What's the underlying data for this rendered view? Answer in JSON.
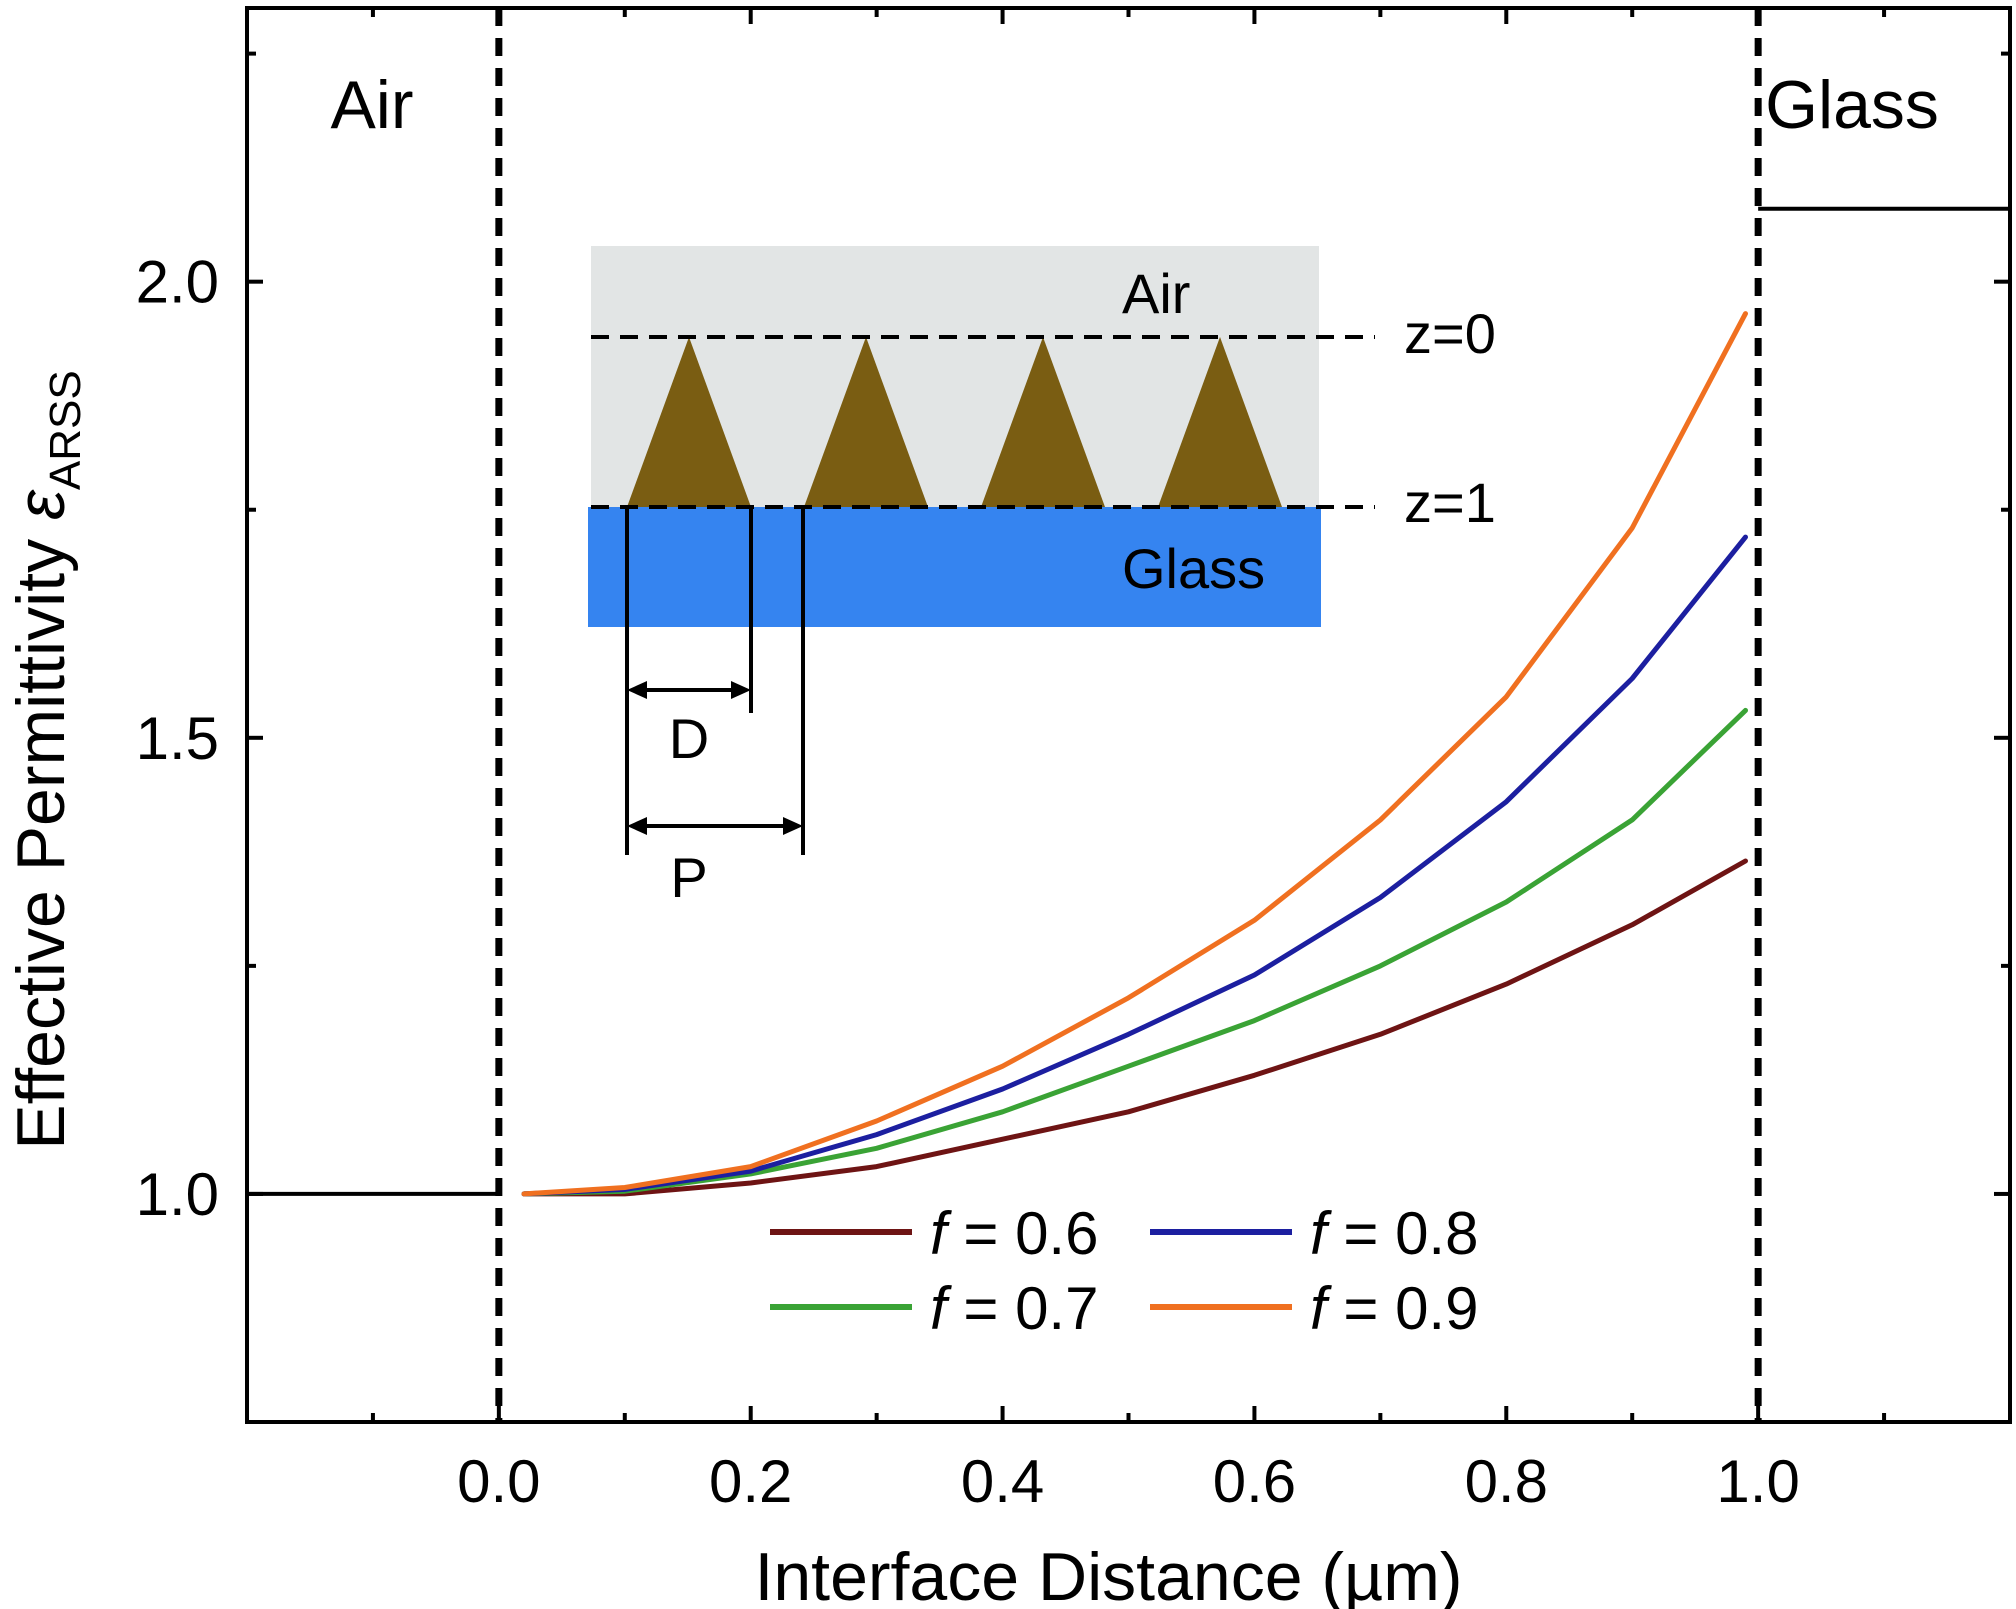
{
  "chart_data": {
    "type": "line",
    "xlabel": "Interface Distance (µm)",
    "ylabel_main": "Effective Permittivity ",
    "ylabel_symbol": "ε",
    "ylabel_subscript": "ARSS",
    "xlim": [
      -0.2,
      1.2
    ],
    "ylim": [
      0.75,
      2.3
    ],
    "x_ticks": [
      0.0,
      0.2,
      0.4,
      0.6,
      0.8,
      1.0
    ],
    "x_tick_labels": [
      "0.0",
      "0.2",
      "0.4",
      "0.6",
      "0.8",
      "1.0"
    ],
    "x_minor_ticks": [
      -0.1,
      0.1,
      0.3,
      0.5,
      0.7,
      0.9,
      1.1
    ],
    "y_ticks": [
      1.0,
      1.5,
      2.0
    ],
    "y_tick_labels": [
      "1.0",
      "1.5",
      "2.0"
    ],
    "y_minor_ticks": [
      0.75,
      1.25,
      1.75,
      2.25
    ],
    "grid": false,
    "legend_position": "bottom-center",
    "region_labels": {
      "left": "Air",
      "right": "Glass"
    },
    "reference_lines": {
      "boundaries_x": [
        0.0,
        1.0
      ],
      "air_level": {
        "x": [
          -0.2,
          0.0
        ],
        "y": 1.0
      },
      "glass_level": {
        "x": [
          1.0,
          1.2
        ],
        "y": 2.08
      }
    },
    "series": [
      {
        "name": "f = 0.6",
        "f_value": "0.6",
        "color": "#6e1414",
        "x": [
          0.02,
          0.1,
          0.2,
          0.3,
          0.4,
          0.5,
          0.6,
          0.7,
          0.8,
          0.9,
          0.99
        ],
        "y": [
          1.0,
          1.0,
          1.012,
          1.03,
          1.06,
          1.09,
          1.13,
          1.175,
          1.23,
          1.295,
          1.365
        ]
      },
      {
        "name": "f = 0.7",
        "f_value": "0.7",
        "color": "#3aa335",
        "x": [
          0.02,
          0.1,
          0.2,
          0.3,
          0.4,
          0.5,
          0.6,
          0.7,
          0.8,
          0.9,
          0.99
        ],
        "y": [
          1.0,
          1.003,
          1.022,
          1.05,
          1.09,
          1.14,
          1.19,
          1.25,
          1.32,
          1.41,
          1.53
        ]
      },
      {
        "name": "f = 0.8",
        "f_value": "0.8",
        "color": "#1c1fa0",
        "x": [
          0.02,
          0.1,
          0.2,
          0.3,
          0.4,
          0.5,
          0.6,
          0.7,
          0.8,
          0.9,
          0.99
        ],
        "y": [
          1.0,
          1.005,
          1.025,
          1.065,
          1.115,
          1.175,
          1.24,
          1.325,
          1.43,
          1.565,
          1.72
        ]
      },
      {
        "name": "f = 0.9",
        "f_value": "0.9",
        "color": "#f07020",
        "x": [
          0.02,
          0.1,
          0.2,
          0.3,
          0.4,
          0.5,
          0.6,
          0.7,
          0.8,
          0.9,
          0.99
        ],
        "y": [
          1.0,
          1.007,
          1.03,
          1.08,
          1.14,
          1.215,
          1.3,
          1.41,
          1.545,
          1.73,
          1.965
        ]
      }
    ],
    "inset": {
      "labels": {
        "air": "Air",
        "glass": "Glass",
        "z0": "z=0",
        "z1": "z=1",
        "D": "D",
        "P": "P"
      },
      "colors": {
        "air_bg": "#e2e5e5",
        "glass_bg": "#3584f0",
        "cone": "#7a5d12"
      },
      "cone_count": 4
    }
  }
}
